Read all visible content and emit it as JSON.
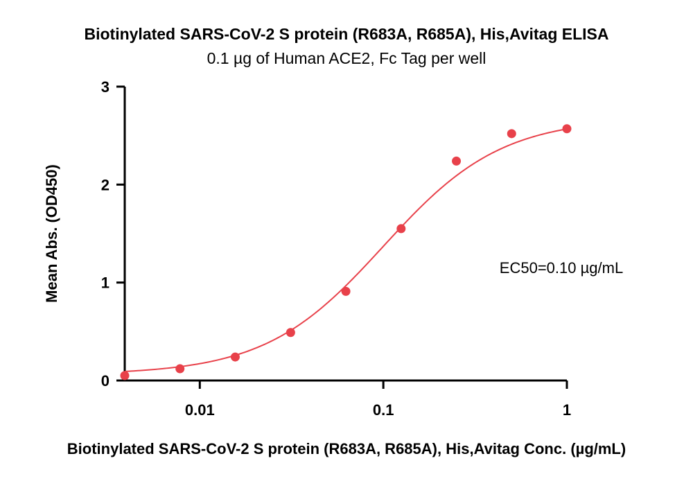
{
  "chart_data": {
    "type": "scatter",
    "title": "Biotinylated SARS-CoV-2 S protein (R683A, R685A), His,Avitag ELISA",
    "subtitle": "0.1 µg of Human ACE2, Fc Tag per well",
    "xlabel": "Biotinylated SARS-CoV-2 S protein (R683A, R685A), His,Avitag Conc. (µg/mL)",
    "ylabel": "Mean Abs. (OD450)",
    "x_scale": "log",
    "xlim": [
      0.0039,
      1.0
    ],
    "ylim": [
      0,
      3
    ],
    "x_ticks": [
      0.01,
      0.1,
      1
    ],
    "x_tick_labels": [
      "0.01",
      "0.1",
      "1"
    ],
    "y_ticks": [
      0,
      1,
      2,
      3
    ],
    "y_tick_labels": [
      "0",
      "1",
      "2",
      "3"
    ],
    "grid": false,
    "series": [
      {
        "color": "#e8414a",
        "x": [
          0.0039,
          0.0078,
          0.0156,
          0.03125,
          0.0625,
          0.125,
          0.25,
          0.5,
          1.0
        ],
        "y": [
          0.05,
          0.12,
          0.24,
          0.49,
          0.91,
          1.55,
          2.24,
          2.52,
          2.57
        ],
        "fit": {
          "model": "4PL",
          "bottom": 0.06,
          "top": 2.68,
          "ec50": 0.1,
          "hill": 1.35
        }
      }
    ],
    "annotations": [
      {
        "text": "EC50=0.10 µg/mL"
      }
    ]
  }
}
